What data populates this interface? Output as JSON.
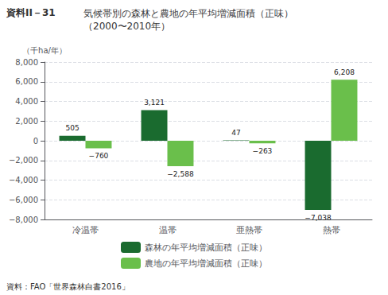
{
  "chart_data": {
    "type": "bar",
    "title": "気候帯別の森林と農地の年平均増減面積（正味）",
    "subtitle": "（2000〜2010年）",
    "annotations": [
      "資料II－31",
      "資料：FAO「世界森林白書2016」"
    ],
    "ylabel": "（千ha/年）",
    "categories": [
      "冷温帯",
      "温帯",
      "亜熱帯",
      "熱帯"
    ],
    "series": [
      {
        "name": "森林の年平均増減面積（正味）",
        "color": "#1a6b2f",
        "values": [
          505,
          3121,
          47,
          -7038
        ],
        "value_labels": [
          "505",
          "3,121",
          "47",
          "−7,038"
        ]
      },
      {
        "name": "農地の年平均増減面積（正味）",
        "color": "#6abf4b",
        "values": [
          -760,
          -2588,
          -263,
          6208
        ],
        "value_labels": [
          "−760",
          "−2,588",
          "−263",
          "6,208"
        ]
      }
    ],
    "ylim": [
      -8000,
      8000
    ],
    "yticks": [
      {
        "value": -8000,
        "label": "−8,000"
      },
      {
        "value": -6000,
        "label": "−6,000"
      },
      {
        "value": -4000,
        "label": "−4,000"
      },
      {
        "value": -2000,
        "label": "−2,000"
      },
      0,
      {
        "value": 2000,
        "label": "2,000"
      },
      {
        "value": 4000,
        "label": "4,000"
      },
      {
        "value": 6000,
        "label": "6,000"
      },
      {
        "value": 8000,
        "label": "8,000"
      }
    ],
    "grid": true,
    "legend": "bottom",
    "data_labels": true
  }
}
